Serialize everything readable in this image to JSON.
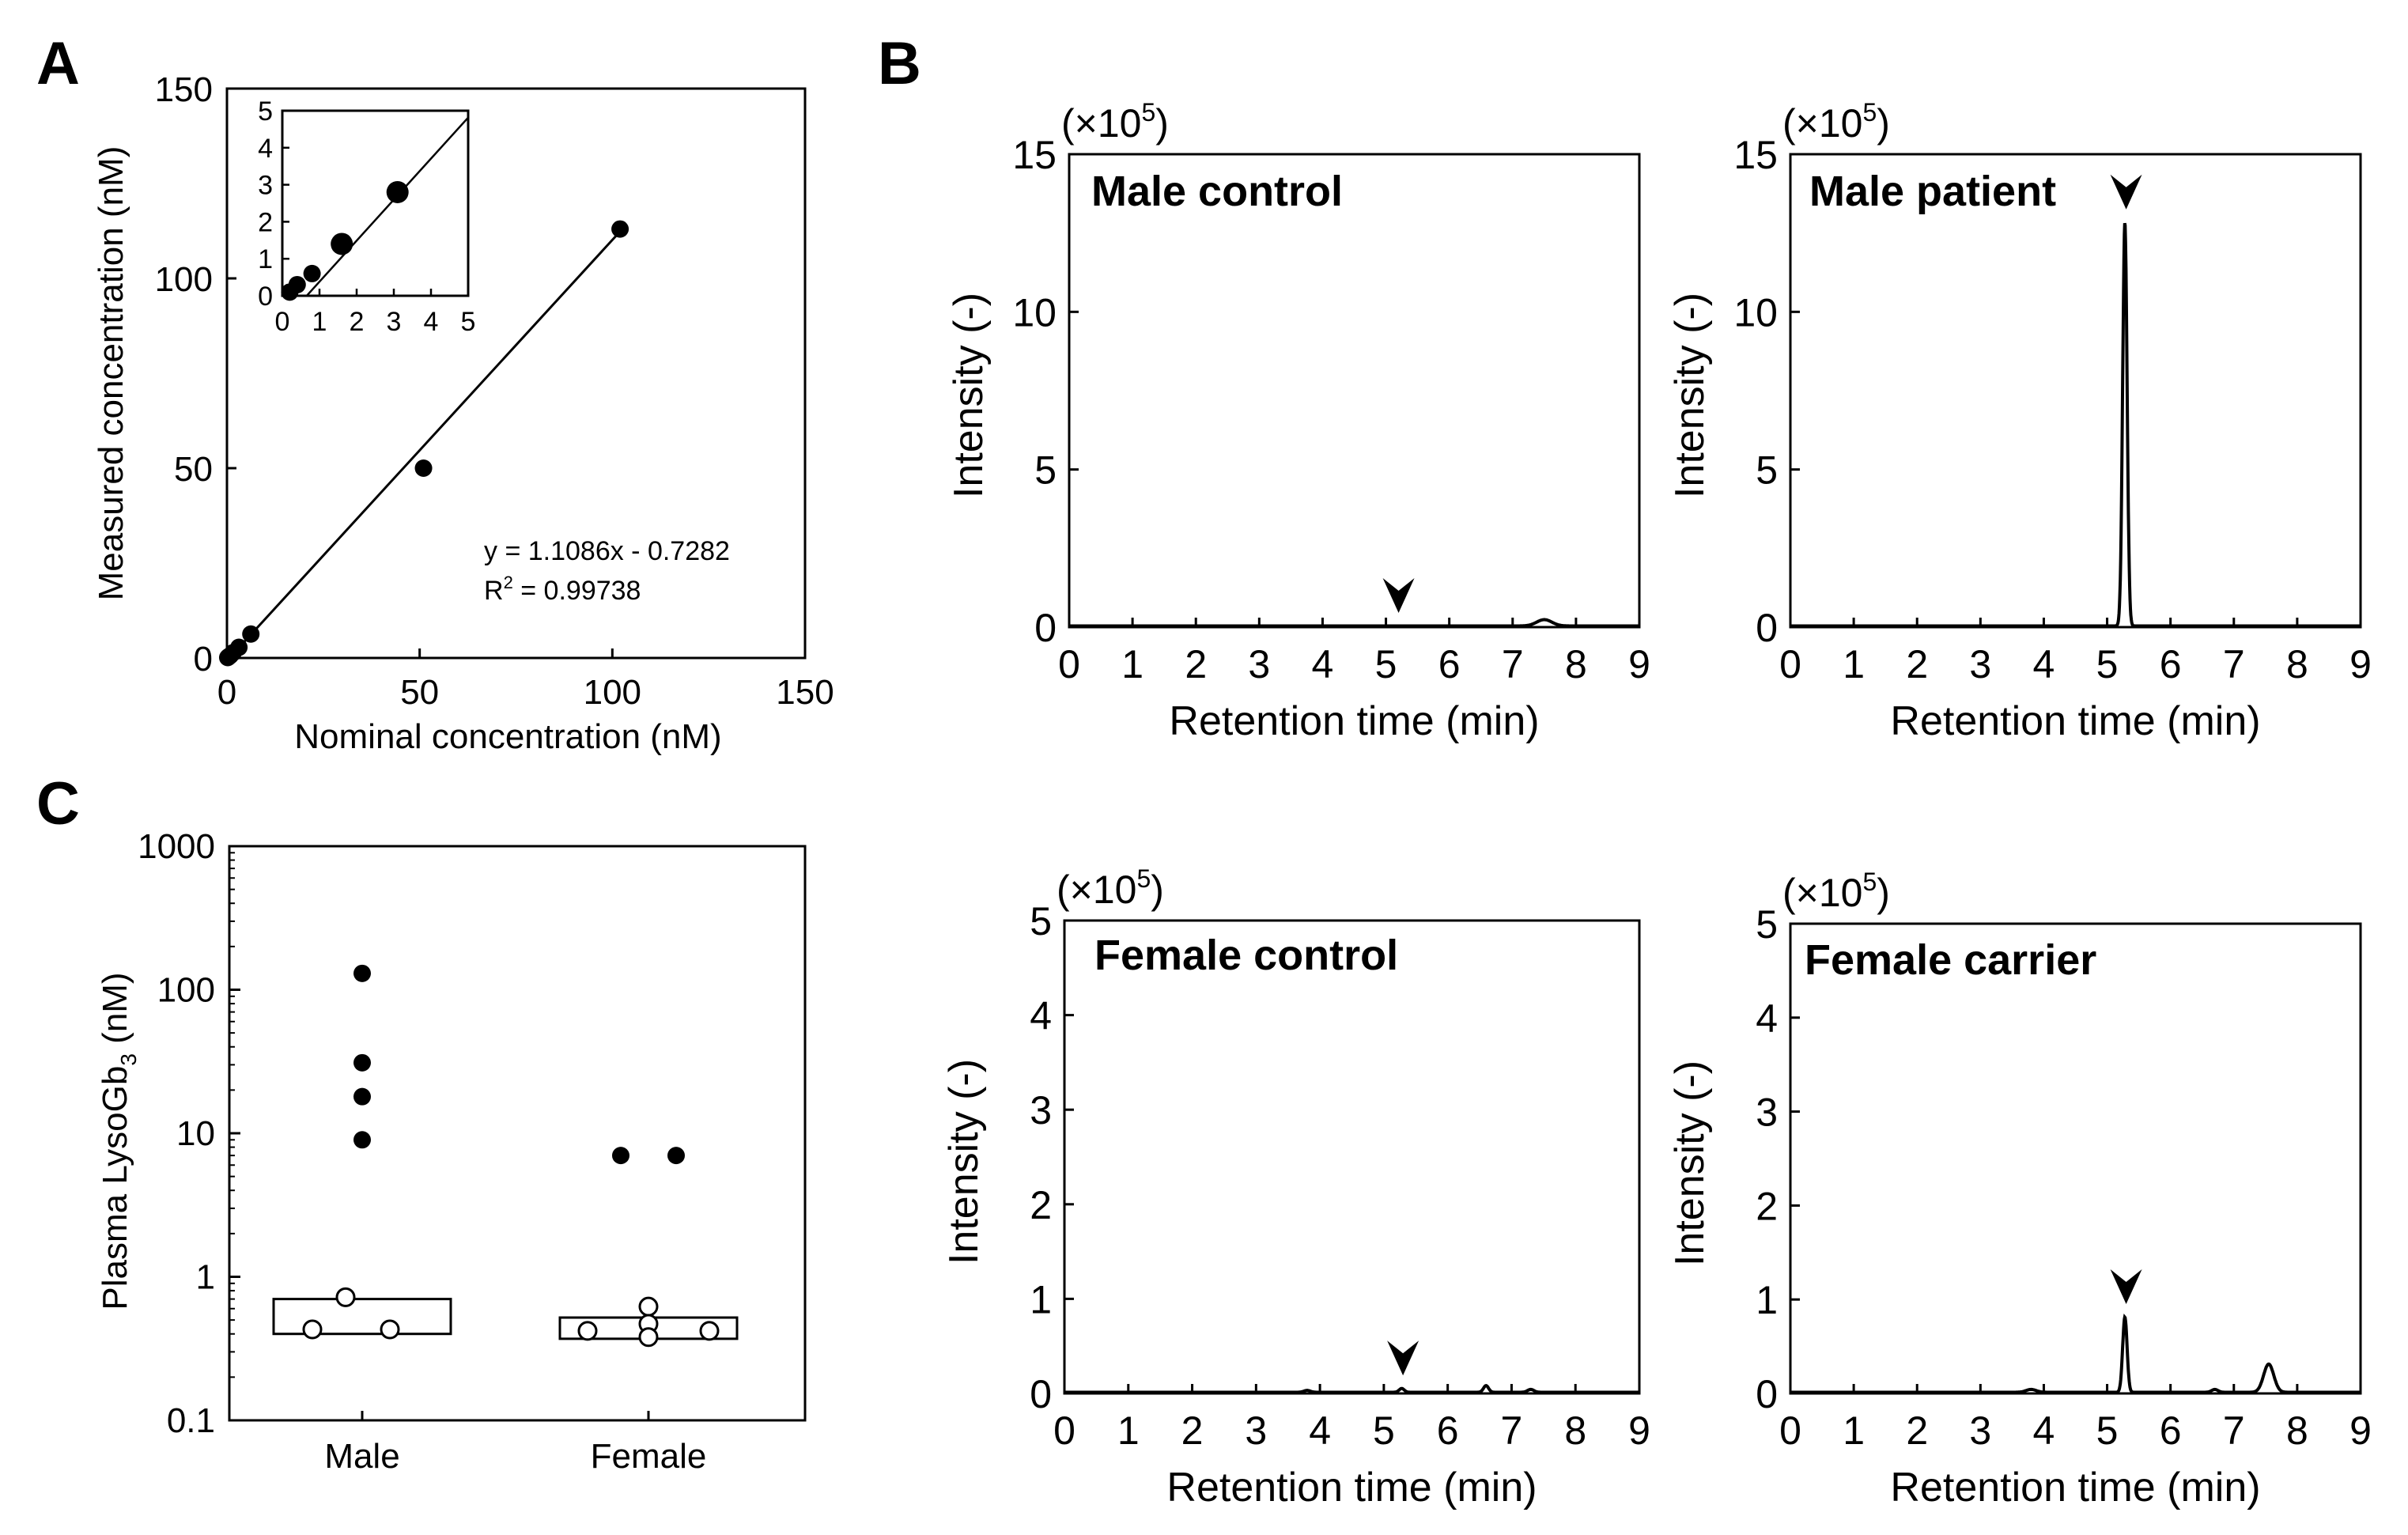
{
  "figure": {
    "panel_labels": [
      "A",
      "B",
      "C"
    ]
  },
  "chart_data": [
    {
      "id": "A",
      "type": "scatter",
      "xlabel": "Nominal concentration (nM)",
      "ylabel": "Measured concentration (nM)",
      "xlim": [
        0,
        150
      ],
      "ylim": [
        0,
        150
      ],
      "xticks": [
        0,
        50,
        100,
        150
      ],
      "yticks": [
        0,
        50,
        100,
        150
      ],
      "points": [
        [
          0.2,
          0.1
        ],
        [
          0.4,
          0.3
        ],
        [
          0.8,
          0.6
        ],
        [
          1.6,
          1.4
        ],
        [
          3.1,
          2.8
        ],
        [
          6.2,
          6.3
        ],
        [
          51,
          50
        ],
        [
          102,
          113
        ]
      ],
      "fit": {
        "slope": 1.1086,
        "intercept": -0.7282
      },
      "equation_text": "y = 1.1086x - 0.7282",
      "r2_prefix": "R",
      "r2_sup": "2",
      "r2_value": " = 0.99738",
      "inset": {
        "xlim": [
          0,
          5
        ],
        "ylim": [
          0,
          5
        ],
        "xticks": [
          0,
          1,
          2,
          3,
          4,
          5
        ],
        "yticks": [
          0,
          1,
          2,
          3,
          4,
          5
        ],
        "points": [
          [
            0.2,
            0.1
          ],
          [
            0.4,
            0.3
          ],
          [
            0.8,
            0.6
          ],
          [
            1.6,
            1.4
          ],
          [
            3.1,
            2.8
          ]
        ]
      }
    },
    {
      "id": "B1",
      "type": "line",
      "title": "Male control",
      "xlabel": "Retention time (min)",
      "ylabel": "Intensity (-)",
      "scale_prefix": "(×10",
      "scale_sup": "5",
      "scale_suffix": ")",
      "xlim": [
        0,
        9
      ],
      "ylim": [
        0,
        15
      ],
      "xticks": [
        0,
        1,
        2,
        3,
        4,
        5,
        6,
        7,
        8,
        9
      ],
      "yticks": [
        0,
        5,
        10,
        15
      ],
      "peaks": [
        {
          "x": 7.5,
          "height": 0.2,
          "width": 0.12
        }
      ],
      "arrow_x": 5.2
    },
    {
      "id": "B2",
      "type": "line",
      "title": "Male patient",
      "xlabel": "Retention time (min)",
      "ylabel": "Intensity (-)",
      "scale_prefix": "(×10",
      "scale_sup": "5",
      "scale_suffix": ")",
      "xlim": [
        0,
        9
      ],
      "ylim": [
        0,
        15
      ],
      "xticks": [
        0,
        1,
        2,
        3,
        4,
        5,
        6,
        7,
        8,
        9
      ],
      "yticks": [
        0,
        5,
        10,
        15
      ],
      "peaks": [
        {
          "x": 5.28,
          "height": 12.8,
          "width": 0.035
        }
      ],
      "arrow_x": 5.3
    },
    {
      "id": "B3",
      "type": "line",
      "title": "Female control",
      "xlabel": "Retention time (min)",
      "ylabel": "Intensity (-)",
      "scale_prefix": "(×10",
      "scale_sup": "5",
      "scale_suffix": ")",
      "xlim": [
        0,
        9
      ],
      "ylim": [
        0,
        5
      ],
      "xticks": [
        0,
        1,
        2,
        3,
        4,
        5,
        6,
        7,
        8,
        9
      ],
      "yticks": [
        0,
        1,
        2,
        3,
        4,
        5
      ],
      "peaks": [
        {
          "x": 3.8,
          "height": 0.02,
          "width": 0.05
        },
        {
          "x": 5.28,
          "height": 0.04,
          "width": 0.04
        },
        {
          "x": 6.6,
          "height": 0.07,
          "width": 0.04
        },
        {
          "x": 7.3,
          "height": 0.03,
          "width": 0.05
        }
      ],
      "arrow_x": 5.3
    },
    {
      "id": "B4",
      "type": "line",
      "title": "Female carrier",
      "xlabel": "Retention time (min)",
      "ylabel": "Intensity (-)",
      "scale_prefix": "(×10",
      "scale_sup": "5",
      "scale_suffix": ")",
      "xlim": [
        0,
        9
      ],
      "ylim": [
        0,
        5
      ],
      "xticks": [
        0,
        1,
        2,
        3,
        4,
        5,
        6,
        7,
        8,
        9
      ],
      "yticks": [
        0,
        1,
        2,
        3,
        4,
        5
      ],
      "peaks": [
        {
          "x": 3.8,
          "height": 0.03,
          "width": 0.08
        },
        {
          "x": 5.28,
          "height": 0.8,
          "width": 0.035
        },
        {
          "x": 6.7,
          "height": 0.03,
          "width": 0.05
        },
        {
          "x": 7.55,
          "height": 0.3,
          "width": 0.08
        }
      ],
      "arrow_x": 5.3
    },
    {
      "id": "C",
      "type": "scatter",
      "ylabel_prefix": "Plasma LysoGb",
      "ylabel_sub": "3",
      "ylabel_suffix": " (nM)",
      "yscale": "log",
      "ylim": [
        0.1,
        1000
      ],
      "yticks": [
        0.1,
        1,
        10,
        100,
        1000
      ],
      "ytick_labels": [
        "0.1",
        "1",
        "10",
        "100",
        "1000"
      ],
      "categories": [
        "Male",
        "Female"
      ],
      "series": [
        {
          "category": "Male",
          "filled": [
            [
              0,
              130
            ],
            [
              0,
              31
            ],
            [
              0,
              18
            ],
            [
              0,
              9
            ]
          ],
          "open": [
            [
              -0.06,
              0.72
            ],
            [
              -0.18,
              0.43
            ],
            [
              0.1,
              0.43
            ]
          ],
          "box": [
            0.4,
            0.7
          ]
        },
        {
          "category": "Female",
          "filled": [
            [
              -0.1,
              7
            ],
            [
              0.1,
              7
            ]
          ],
          "open": [
            [
              0,
              0.62
            ],
            [
              -0.22,
              0.42
            ],
            [
              0,
              0.47
            ],
            [
              0,
              0.38
            ],
            [
              0.22,
              0.42
            ]
          ],
          "box": [
            0.37,
            0.52
          ]
        }
      ]
    }
  ]
}
